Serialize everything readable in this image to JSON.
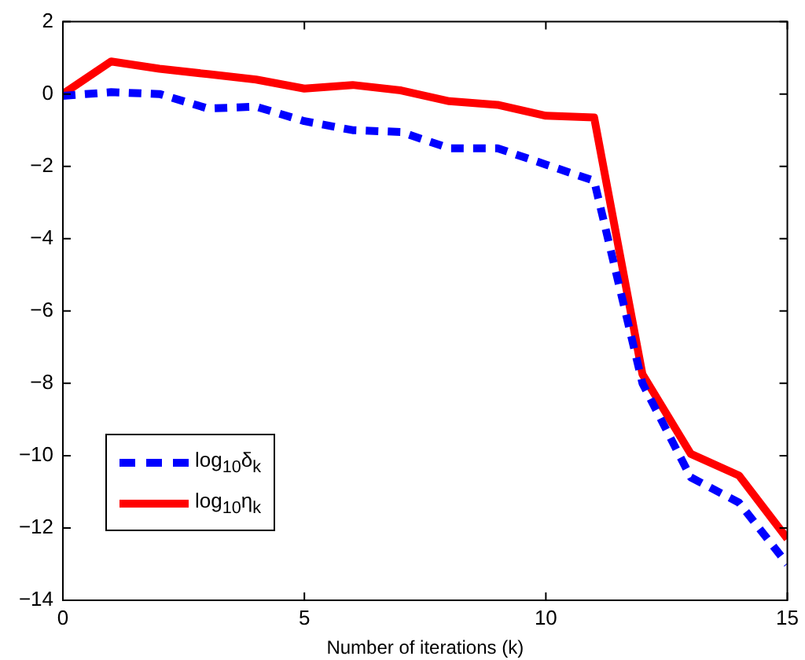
{
  "chart_data": {
    "type": "line",
    "xlabel": "Number of iterations (k)",
    "x": [
      0,
      1,
      2,
      3,
      4,
      5,
      6,
      7,
      8,
      9,
      10,
      11,
      12,
      13,
      14,
      15
    ],
    "xlim": [
      0,
      15
    ],
    "xticks": [
      0,
      5,
      10,
      15
    ],
    "ylim": [
      -14,
      2
    ],
    "yticks": [
      -14,
      -12,
      -10,
      -8,
      -6,
      -4,
      -2,
      0,
      2
    ],
    "grid": false,
    "legend": "bottom left",
    "marker": "none",
    "series": [
      {
        "name": "log$_{10}$δ$_{k}$",
        "color": "#0000ff",
        "line_style": "dashed",
        "values": [
          -0.05,
          0.05,
          0,
          -0.4,
          -0.35,
          -0.75,
          -1.0,
          -1.05,
          -1.5,
          -1.5,
          -1.95,
          -2.4,
          -8.0,
          -10.6,
          -11.3,
          -13.0
        ]
      },
      {
        "name": "log$_{10}$η$_{k}$",
        "color": "#ff0000",
        "line_style": "solid",
        "values": [
          0,
          0.9,
          0.7,
          0.55,
          0.4,
          0.15,
          0.25,
          0.1,
          -0.2,
          -0.3,
          -0.6,
          -0.65,
          -7.75,
          -9.95,
          -10.55,
          -12.3
        ]
      }
    ]
  }
}
